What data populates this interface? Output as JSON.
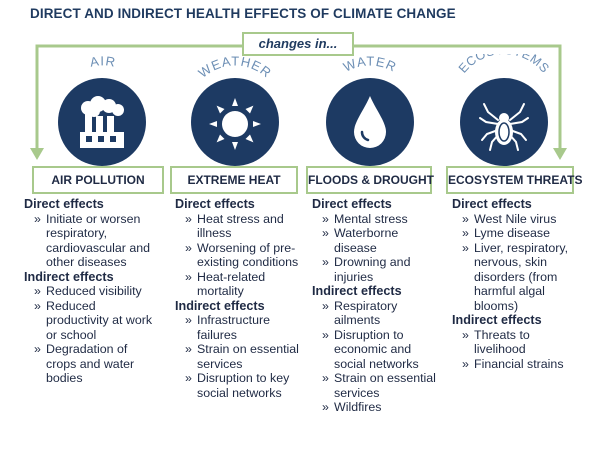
{
  "title": "DIRECT AND INDIRECT HEALTH EFFECTS OF CLIMATE CHANGE",
  "changes_label": "changes in...",
  "colors": {
    "navy": "#1d3a63",
    "green": "#a8c98c",
    "arc": "#6d8fb5"
  },
  "columns": [
    {
      "arc_label": "AIR",
      "icon": "factory-icon",
      "outcome": "AIR POLLUTION",
      "direct_heading": "Direct effects",
      "direct": [
        "Initiate or worsen respiratory, cardiovascular and other diseases"
      ],
      "indirect_heading": "Indirect effects",
      "indirect": [
        "Reduced visibility",
        "Reduced productivity at work or school",
        "Degradation of crops and water bodies"
      ]
    },
    {
      "arc_label": "WEATHER",
      "icon": "sun-icon",
      "outcome": "EXTREME HEAT",
      "direct_heading": "Direct effects",
      "direct": [
        "Heat stress and illness",
        "Worsening of pre-existing conditions",
        "Heat-related mortality"
      ],
      "indirect_heading": "Indirect effects",
      "indirect": [
        "Infrastructure failures",
        "Strain on essential services",
        "Disruption to key social networks"
      ]
    },
    {
      "arc_label": "WATER",
      "icon": "water-drop-icon",
      "outcome": "FLOODS & DROUGHT",
      "direct_heading": "Direct effects",
      "direct": [
        "Mental stress",
        "Waterborne disease",
        "Drowning and injuries"
      ],
      "indirect_heading": "Indirect effects",
      "indirect": [
        "Respiratory ailments",
        "Disruption to economic and social networks",
        "Strain on essential services",
        "Wildfires"
      ]
    },
    {
      "arc_label": "ECOSYSTEMS",
      "icon": "tick-icon",
      "outcome": "ECOSYSTEM THREATS",
      "direct_heading": "Direct effects",
      "direct": [
        "West Nile virus",
        "Lyme disease",
        "Liver, respiratory, nervous, skin disorders (from harmful algal blooms)"
      ],
      "indirect_heading": "Indirect effects",
      "indirect": [
        "Threats to livelihood",
        "Financial strains"
      ]
    }
  ]
}
